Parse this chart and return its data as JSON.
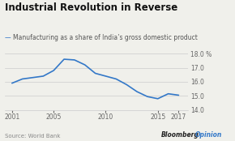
{
  "title": "Industrial Revolution in Reverse",
  "subtitle": "Manufacturing as a share of India’s gross domestic product",
  "source": "Source: World Bank",
  "watermark_black": "Bloomberg",
  "watermark_blue": "Opinion",
  "years": [
    2001,
    2002,
    2003,
    2004,
    2005,
    2006,
    2007,
    2008,
    2009,
    2010,
    2011,
    2012,
    2013,
    2014,
    2015,
    2016,
    2017
  ],
  "values": [
    15.9,
    16.2,
    16.3,
    16.4,
    16.8,
    17.6,
    17.55,
    17.2,
    16.6,
    16.4,
    16.2,
    15.8,
    15.3,
    14.95,
    14.8,
    15.15,
    15.05
  ],
  "line_color": "#3378c8",
  "background_color": "#f0f0eb",
  "plot_bg_color": "#f0f0eb",
  "title_fontsize": 8.5,
  "subtitle_fontsize": 5.5,
  "source_fontsize": 5.0,
  "tick_fontsize": 5.5,
  "ylim": [
    14.0,
    18.0
  ],
  "yticks": [
    14.0,
    15.0,
    16.0,
    17.0,
    18.0
  ],
  "grid_color": "#cccccc",
  "xticks": [
    2001,
    2005,
    2010,
    2015,
    2017
  ]
}
